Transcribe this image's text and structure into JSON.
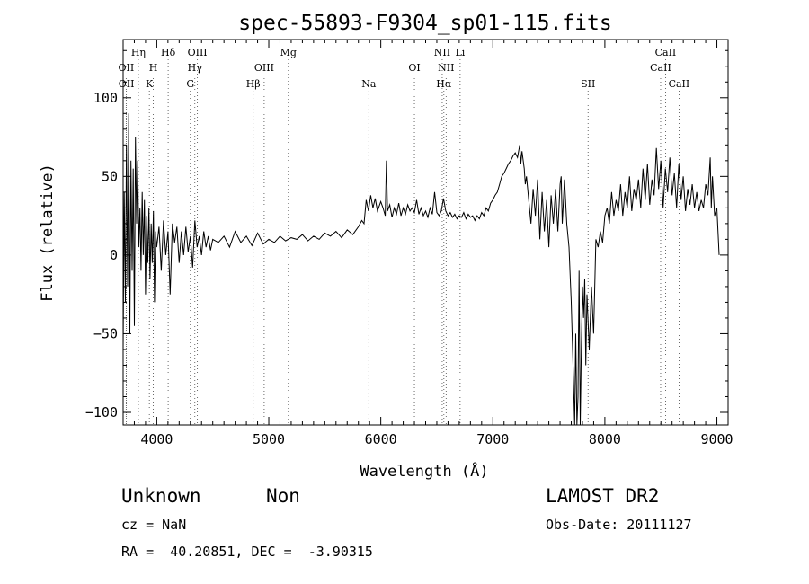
{
  "chart_data": {
    "type": "line",
    "title": "spec-55893-F9304_sp01-115.fits",
    "xlabel": "Wavelength (Å)",
    "ylabel": "Flux (relative)",
    "xlim": [
      3700,
      9100
    ],
    "ylim": [
      -108,
      137
    ],
    "xticks": [
      4000,
      5000,
      6000,
      7000,
      8000,
      9000
    ],
    "yticks": [
      -100,
      -50,
      0,
      50,
      100
    ],
    "grid": false,
    "series": [
      {
        "points": [
          [
            3700,
            -60
          ],
          [
            3710,
            40
          ],
          [
            3720,
            -30
          ],
          [
            3730,
            70
          ],
          [
            3740,
            -20
          ],
          [
            3750,
            90
          ],
          [
            3760,
            -50
          ],
          [
            3770,
            60
          ],
          [
            3780,
            -10
          ],
          [
            3790,
            55
          ],
          [
            3800,
            -45
          ],
          [
            3810,
            75
          ],
          [
            3820,
            20
          ],
          [
            3830,
            60
          ],
          [
            3840,
            5
          ],
          [
            3850,
            30
          ],
          [
            3860,
            -10
          ],
          [
            3870,
            40
          ],
          [
            3880,
            0
          ],
          [
            3890,
            35
          ],
          [
            3900,
            -25
          ],
          [
            3910,
            25
          ],
          [
            3920,
            -5
          ],
          [
            3930,
            30
          ],
          [
            3940,
            -15
          ],
          [
            3950,
            20
          ],
          [
            3960,
            -5
          ],
          [
            3970,
            28
          ],
          [
            3980,
            -30
          ],
          [
            3990,
            15
          ],
          [
            4000,
            5
          ],
          [
            4020,
            18
          ],
          [
            4040,
            -10
          ],
          [
            4060,
            22
          ],
          [
            4080,
            0
          ],
          [
            4100,
            15
          ],
          [
            4120,
            -25
          ],
          [
            4140,
            20
          ],
          [
            4160,
            8
          ],
          [
            4180,
            18
          ],
          [
            4200,
            -5
          ],
          [
            4220,
            15
          ],
          [
            4240,
            0
          ],
          [
            4260,
            18
          ],
          [
            4280,
            2
          ],
          [
            4300,
            12
          ],
          [
            4320,
            -8
          ],
          [
            4340,
            22
          ],
          [
            4360,
            5
          ],
          [
            4380,
            12
          ],
          [
            4400,
            0
          ],
          [
            4420,
            15
          ],
          [
            4440,
            5
          ],
          [
            4460,
            12
          ],
          [
            4480,
            3
          ],
          [
            4500,
            10
          ],
          [
            4550,
            8
          ],
          [
            4600,
            12
          ],
          [
            4650,
            5
          ],
          [
            4700,
            15
          ],
          [
            4750,
            8
          ],
          [
            4800,
            12
          ],
          [
            4850,
            6
          ],
          [
            4900,
            14
          ],
          [
            4950,
            7
          ],
          [
            5000,
            10
          ],
          [
            5050,
            8
          ],
          [
            5100,
            12
          ],
          [
            5150,
            9
          ],
          [
            5200,
            11
          ],
          [
            5250,
            10
          ],
          [
            5300,
            13
          ],
          [
            5350,
            9
          ],
          [
            5400,
            12
          ],
          [
            5450,
            10
          ],
          [
            5500,
            14
          ],
          [
            5550,
            12
          ],
          [
            5600,
            15
          ],
          [
            5650,
            11
          ],
          [
            5700,
            16
          ],
          [
            5750,
            13
          ],
          [
            5800,
            18
          ],
          [
            5830,
            22
          ],
          [
            5850,
            20
          ],
          [
            5870,
            35
          ],
          [
            5890,
            28
          ],
          [
            5910,
            38
          ],
          [
            5930,
            30
          ],
          [
            5950,
            36
          ],
          [
            5970,
            28
          ],
          [
            6000,
            34
          ],
          [
            6020,
            30
          ],
          [
            6040,
            25
          ],
          [
            6050,
            60
          ],
          [
            6060,
            28
          ],
          [
            6080,
            32
          ],
          [
            6100,
            24
          ],
          [
            6120,
            30
          ],
          [
            6140,
            26
          ],
          [
            6160,
            33
          ],
          [
            6180,
            25
          ],
          [
            6200,
            30
          ],
          [
            6220,
            26
          ],
          [
            6240,
            32
          ],
          [
            6260,
            28
          ],
          [
            6280,
            30
          ],
          [
            6300,
            27
          ],
          [
            6320,
            35
          ],
          [
            6340,
            26
          ],
          [
            6360,
            30
          ],
          [
            6380,
            25
          ],
          [
            6400,
            28
          ],
          [
            6420,
            24
          ],
          [
            6440,
            30
          ],
          [
            6460,
            26
          ],
          [
            6480,
            40
          ],
          [
            6500,
            27
          ],
          [
            6520,
            25
          ],
          [
            6540,
            28
          ],
          [
            6560,
            36
          ],
          [
            6580,
            28
          ],
          [
            6600,
            25
          ],
          [
            6620,
            27
          ],
          [
            6640,
            24
          ],
          [
            6660,
            26
          ],
          [
            6680,
            23
          ],
          [
            6700,
            25
          ],
          [
            6720,
            24
          ],
          [
            6740,
            27
          ],
          [
            6760,
            23
          ],
          [
            6780,
            26
          ],
          [
            6800,
            24
          ],
          [
            6820,
            25
          ],
          [
            6840,
            22
          ],
          [
            6860,
            25
          ],
          [
            6880,
            23
          ],
          [
            6900,
            27
          ],
          [
            6920,
            25
          ],
          [
            6940,
            30
          ],
          [
            6960,
            28
          ],
          [
            6980,
            33
          ],
          [
            7000,
            35
          ],
          [
            7020,
            38
          ],
          [
            7040,
            40
          ],
          [
            7060,
            45
          ],
          [
            7080,
            50
          ],
          [
            7100,
            52
          ],
          [
            7120,
            55
          ],
          [
            7140,
            58
          ],
          [
            7160,
            60
          ],
          [
            7180,
            63
          ],
          [
            7200,
            65
          ],
          [
            7220,
            62
          ],
          [
            7240,
            70
          ],
          [
            7250,
            58
          ],
          [
            7260,
            66
          ],
          [
            7280,
            55
          ],
          [
            7290,
            45
          ],
          [
            7300,
            50
          ],
          [
            7320,
            35
          ],
          [
            7340,
            20
          ],
          [
            7360,
            42
          ],
          [
            7380,
            25
          ],
          [
            7400,
            48
          ],
          [
            7420,
            10
          ],
          [
            7440,
            40
          ],
          [
            7460,
            15
          ],
          [
            7480,
            35
          ],
          [
            7500,
            5
          ],
          [
            7520,
            38
          ],
          [
            7540,
            20
          ],
          [
            7560,
            42
          ],
          [
            7580,
            15
          ],
          [
            7600,
            45
          ],
          [
            7610,
            50
          ],
          [
            7620,
            20
          ],
          [
            7640,
            48
          ],
          [
            7660,
            20
          ],
          [
            7680,
            5
          ],
          [
            7700,
            -30
          ],
          [
            7720,
            -80
          ],
          [
            7730,
            -110
          ],
          [
            7740,
            -50
          ],
          [
            7750,
            -110
          ],
          [
            7760,
            -90
          ],
          [
            7770,
            -10
          ],
          [
            7780,
            -110
          ],
          [
            7790,
            -60
          ],
          [
            7800,
            -20
          ],
          [
            7810,
            -40
          ],
          [
            7820,
            -15
          ],
          [
            7830,
            -70
          ],
          [
            7840,
            -25
          ],
          [
            7860,
            -60
          ],
          [
            7880,
            -20
          ],
          [
            7900,
            -50
          ],
          [
            7920,
            10
          ],
          [
            7940,
            5
          ],
          [
            7960,
            15
          ],
          [
            7980,
            8
          ],
          [
            8000,
            25
          ],
          [
            8020,
            30
          ],
          [
            8040,
            20
          ],
          [
            8060,
            40
          ],
          [
            8080,
            25
          ],
          [
            8100,
            35
          ],
          [
            8120,
            28
          ],
          [
            8140,
            45
          ],
          [
            8160,
            25
          ],
          [
            8180,
            40
          ],
          [
            8200,
            30
          ],
          [
            8220,
            50
          ],
          [
            8240,
            28
          ],
          [
            8260,
            42
          ],
          [
            8280,
            35
          ],
          [
            8300,
            48
          ],
          [
            8320,
            30
          ],
          [
            8340,
            55
          ],
          [
            8360,
            35
          ],
          [
            8380,
            58
          ],
          [
            8400,
            32
          ],
          [
            8420,
            48
          ],
          [
            8440,
            38
          ],
          [
            8460,
            68
          ],
          [
            8480,
            42
          ],
          [
            8500,
            60
          ],
          [
            8520,
            30
          ],
          [
            8540,
            55
          ],
          [
            8560,
            40
          ],
          [
            8580,
            62
          ],
          [
            8600,
            38
          ],
          [
            8620,
            52
          ],
          [
            8640,
            30
          ],
          [
            8660,
            58
          ],
          [
            8680,
            35
          ],
          [
            8700,
            50
          ],
          [
            8720,
            28
          ],
          [
            8740,
            42
          ],
          [
            8760,
            32
          ],
          [
            8780,
            45
          ],
          [
            8800,
            30
          ],
          [
            8820,
            40
          ],
          [
            8840,
            28
          ],
          [
            8860,
            35
          ],
          [
            8880,
            30
          ],
          [
            8900,
            45
          ],
          [
            8920,
            38
          ],
          [
            8940,
            62
          ],
          [
            8950,
            30
          ],
          [
            8960,
            50
          ],
          [
            8980,
            25
          ],
          [
            9000,
            30
          ],
          [
            9020,
            0
          ]
        ]
      }
    ],
    "lines": [
      {
        "label": "OII",
        "x": 3727,
        "row": 2
      },
      {
        "label": "OII",
        "x": 3729,
        "row": 3
      },
      {
        "label": "Hη",
        "x": 3836,
        "row": 1
      },
      {
        "label": "H",
        "x": 3969,
        "row": 2
      },
      {
        "label": "K",
        "x": 3934,
        "row": 3
      },
      {
        "label": "Hδ",
        "x": 4102,
        "row": 1
      },
      {
        "label": "OIII",
        "x": 4363,
        "row": 1
      },
      {
        "label": "Hγ",
        "x": 4340,
        "row": 2
      },
      {
        "label": "G",
        "x": 4300,
        "row": 3
      },
      {
        "label": "OIII",
        "x": 4959,
        "row": 2
      },
      {
        "label": "Hβ",
        "x": 4861,
        "row": 3
      },
      {
        "label": "Mg",
        "x": 5175,
        "row": 1
      },
      {
        "label": "Na",
        "x": 5893,
        "row": 3
      },
      {
        "label": "OI",
        "x": 6300,
        "row": 2
      },
      {
        "label": "NII",
        "x": 6548,
        "row": 1
      },
      {
        "label": "NII",
        "x": 6583,
        "row": 2
      },
      {
        "label": "Hα",
        "x": 6563,
        "row": 3
      },
      {
        "label": "Li",
        "x": 6708,
        "row": 1
      },
      {
        "label": "SII",
        "x": 7850,
        "row": 3
      },
      {
        "label": "CaII",
        "x": 8542,
        "row": 1
      },
      {
        "label": "CaII",
        "x": 8498,
        "row": 2
      },
      {
        "label": "CaII",
        "x": 8662,
        "row": 3
      }
    ]
  },
  "info": {
    "object_class": "Unknown",
    "object_subclass": "Non",
    "survey": "LAMOST DR2",
    "redshift": "cz = NaN",
    "obs_date": "Obs-Date: 20111127",
    "coordinates": "RA =  40.20851, DEC =  -3.90315"
  }
}
